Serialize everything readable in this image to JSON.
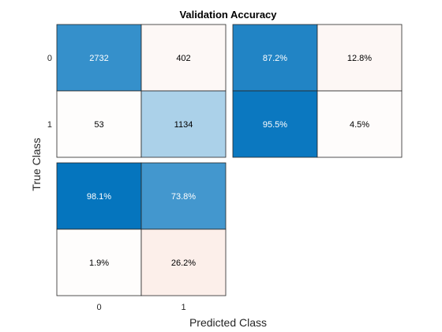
{
  "chart_data": {
    "type": "heatmap",
    "title": "Validation Accuracy",
    "xlabel": "Predicted Class",
    "ylabel": "True Class",
    "classes": [
      "0",
      "1"
    ],
    "confusion_matrix": {
      "values": [
        [
          2732,
          402
        ],
        [
          53,
          1134
        ]
      ],
      "labels": [
        [
          "2732",
          "402"
        ],
        [
          "53",
          "1134"
        ]
      ]
    },
    "row_summary": {
      "values": [
        [
          87.2,
          12.8
        ],
        [
          95.5,
          4.5
        ]
      ],
      "labels": [
        [
          "87.2%",
          "12.8%"
        ],
        [
          "95.5%",
          "4.5%"
        ]
      ]
    },
    "column_summary": {
      "values": [
        [
          98.1,
          73.8
        ],
        [
          1.9,
          26.2
        ]
      ],
      "labels": [
        [
          "98.1%",
          "73.8%"
        ],
        [
          "1.9%",
          "26.2%"
        ]
      ]
    },
    "colors": {
      "diagonal_scale": [
        "#ffffff",
        "#0072bd"
      ],
      "off_diagonal_scale": [
        "#ffffff",
        "#d95319"
      ]
    }
  }
}
